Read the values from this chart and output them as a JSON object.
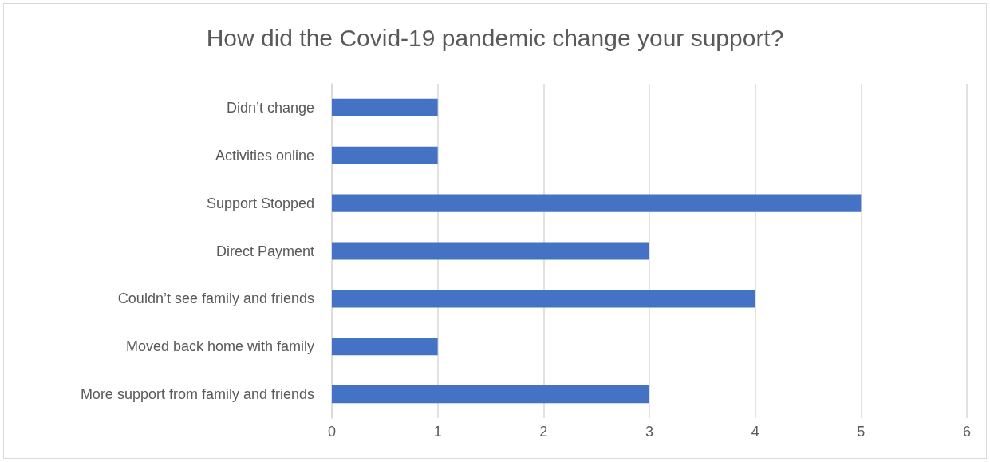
{
  "chart_data": {
    "type": "bar",
    "orientation": "horizontal",
    "title": "How did the Covid-19 pandemic change your support?",
    "categories": [
      "Didn’t change",
      "Activities online",
      "Support Stopped",
      "Direct Payment",
      "Couldn’t see family and friends",
      "Moved back home with family",
      "More support from family and friends"
    ],
    "values": [
      1,
      1,
      5,
      3,
      4,
      1,
      3
    ],
    "color": "#4472c4",
    "xlim": [
      0,
      6
    ],
    "xticks": [
      0,
      1,
      2,
      3,
      4,
      5,
      6
    ],
    "grid": "x"
  }
}
